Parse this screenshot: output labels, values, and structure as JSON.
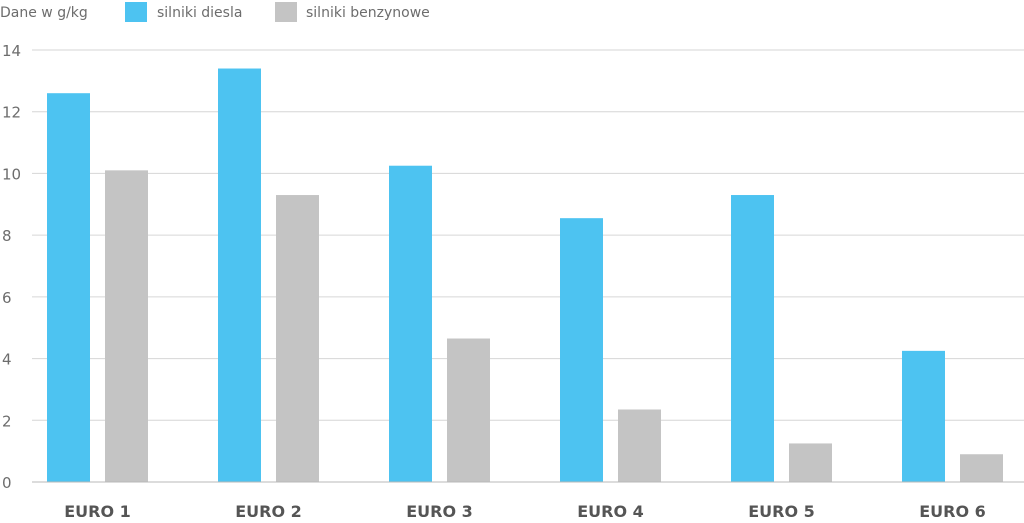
{
  "chart_data": {
    "type": "bar",
    "ylabel": "Dane w g/kg",
    "categories": [
      "EURO 1",
      "EURO 2",
      "EURO 3",
      "EURO 4",
      "EURO 5",
      "EURO 6"
    ],
    "series": [
      {
        "name": "silniki diesla",
        "color": "#4dc3f1",
        "values": [
          12.6,
          13.4,
          10.25,
          8.55,
          9.3,
          4.25
        ]
      },
      {
        "name": "silniki benzynowe",
        "color": "#c4c4c4",
        "values": [
          10.1,
          9.3,
          4.65,
          2.35,
          1.25,
          0.9
        ]
      }
    ],
    "ylim": [
      0,
      14
    ],
    "yticks": [
      0,
      2,
      4,
      6,
      8,
      10,
      12,
      14
    ],
    "grid": true,
    "legend_position": "top-left"
  }
}
